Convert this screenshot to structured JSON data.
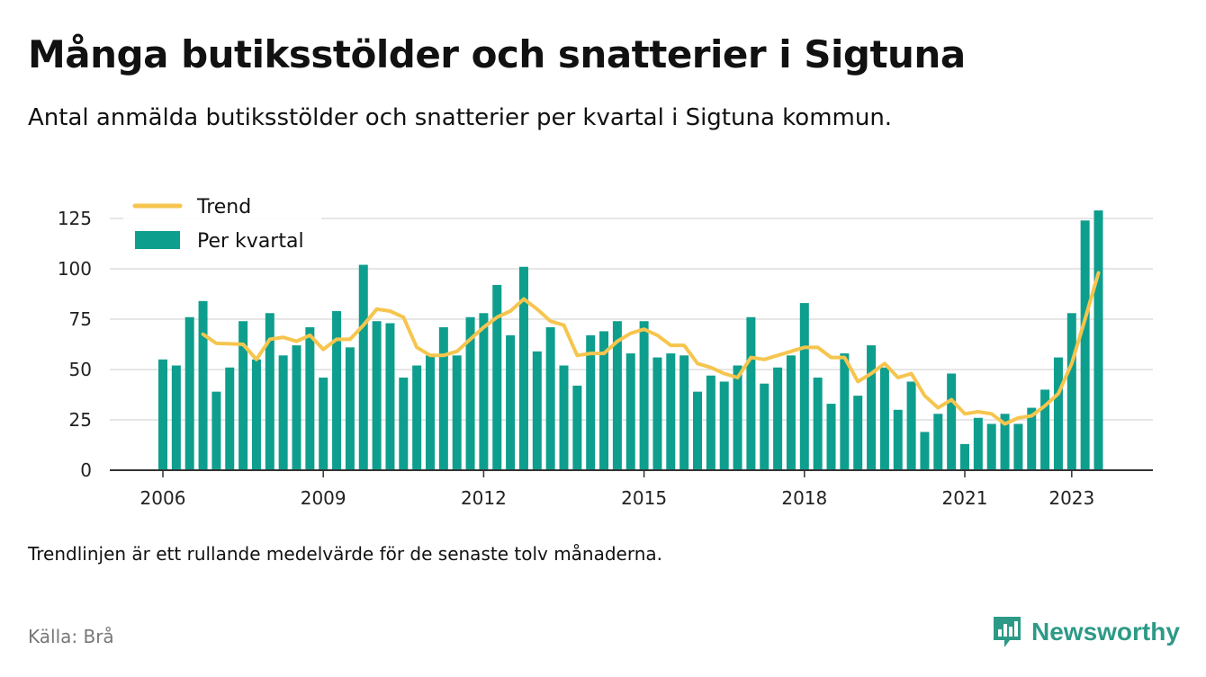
{
  "title": "Många butiksstölder och snatterier i Sigtuna",
  "subtitle": "Antal anmälda butiksstölder och snatterier per kvartal i Sigtuna kommun.",
  "note": "Trendlinjen är ett rullande medelvärde för de senaste tolv månaderna.",
  "source": "Källa: Brå",
  "brand": {
    "name": "Newsworthy",
    "icon": "newsworthy-logo-icon"
  },
  "colors": {
    "bars": "#0e9e8e",
    "trend": "#f6c54e",
    "grid": "#dddddd",
    "axis": "#333333",
    "brand": "#2d9a86"
  },
  "chart_data": {
    "type": "bar",
    "legend_position": "top-left",
    "grid": true,
    "ylim": [
      0,
      130
    ],
    "yticks": [
      0,
      25,
      50,
      75,
      100,
      125
    ],
    "xticks": [
      "2006",
      "2009",
      "2012",
      "2015",
      "2018",
      "2021",
      "2023"
    ],
    "categories": [
      "2006 Q1",
      "2006 Q2",
      "2006 Q3",
      "2006 Q4",
      "2007 Q1",
      "2007 Q2",
      "2007 Q3",
      "2007 Q4",
      "2008 Q1",
      "2008 Q2",
      "2008 Q3",
      "2008 Q4",
      "2009 Q1",
      "2009 Q2",
      "2009 Q3",
      "2009 Q4",
      "2010 Q1",
      "2010 Q2",
      "2010 Q3",
      "2010 Q4",
      "2011 Q1",
      "2011 Q2",
      "2011 Q3",
      "2011 Q4",
      "2012 Q1",
      "2012 Q2",
      "2012 Q3",
      "2012 Q4",
      "2013 Q1",
      "2013 Q2",
      "2013 Q3",
      "2013 Q4",
      "2014 Q1",
      "2014 Q2",
      "2014 Q3",
      "2014 Q4",
      "2015 Q1",
      "2015 Q2",
      "2015 Q3",
      "2015 Q4",
      "2016 Q1",
      "2016 Q2",
      "2016 Q3",
      "2016 Q4",
      "2017 Q1",
      "2017 Q2",
      "2017 Q3",
      "2017 Q4",
      "2018 Q1",
      "2018 Q2",
      "2018 Q3",
      "2018 Q4",
      "2019 Q1",
      "2019 Q2",
      "2019 Q3",
      "2019 Q4",
      "2020 Q1",
      "2020 Q2",
      "2020 Q3",
      "2020 Q4",
      "2021 Q1",
      "2021 Q2",
      "2021 Q3",
      "2021 Q4",
      "2022 Q1",
      "2022 Q2",
      "2022 Q3",
      "2022 Q4",
      "2023 Q1",
      "2023 Q2",
      "2023 Q3"
    ],
    "series": [
      {
        "name": "Per kvartal",
        "type": "bar",
        "values": [
          55,
          52,
          76,
          84,
          39,
          51,
          74,
          55,
          78,
          57,
          62,
          71,
          46,
          79,
          61,
          102,
          74,
          73,
          46,
          52,
          57,
          71,
          57,
          76,
          78,
          92,
          67,
          101,
          59,
          71,
          52,
          42,
          67,
          69,
          74,
          58,
          74,
          56,
          58,
          57,
          39,
          47,
          44,
          52,
          76,
          43,
          51,
          57,
          83,
          46,
          33,
          58,
          37,
          62,
          51,
          30,
          44,
          19,
          28,
          48,
          13,
          26,
          23,
          28,
          23,
          31,
          40,
          56,
          78,
          124,
          129
        ]
      },
      {
        "name": "Trend",
        "type": "line",
        "values": [
          null,
          null,
          null,
          67.5,
          63,
          62.75,
          62.5,
          55,
          65,
          66,
          64,
          67,
          60,
          65,
          65,
          72,
          80,
          79,
          76,
          61,
          57,
          57,
          59,
          65,
          71,
          76,
          79,
          85,
          80,
          74,
          72,
          57,
          58,
          58,
          64,
          68,
          70,
          67,
          62,
          62,
          53,
          51,
          48,
          46,
          56,
          55,
          57,
          59,
          61,
          61,
          56,
          56,
          44,
          48,
          53,
          46,
          48,
          37,
          31,
          35,
          28,
          29,
          28,
          23,
          26,
          27,
          32,
          38,
          53,
          75,
          98
        ]
      }
    ]
  }
}
